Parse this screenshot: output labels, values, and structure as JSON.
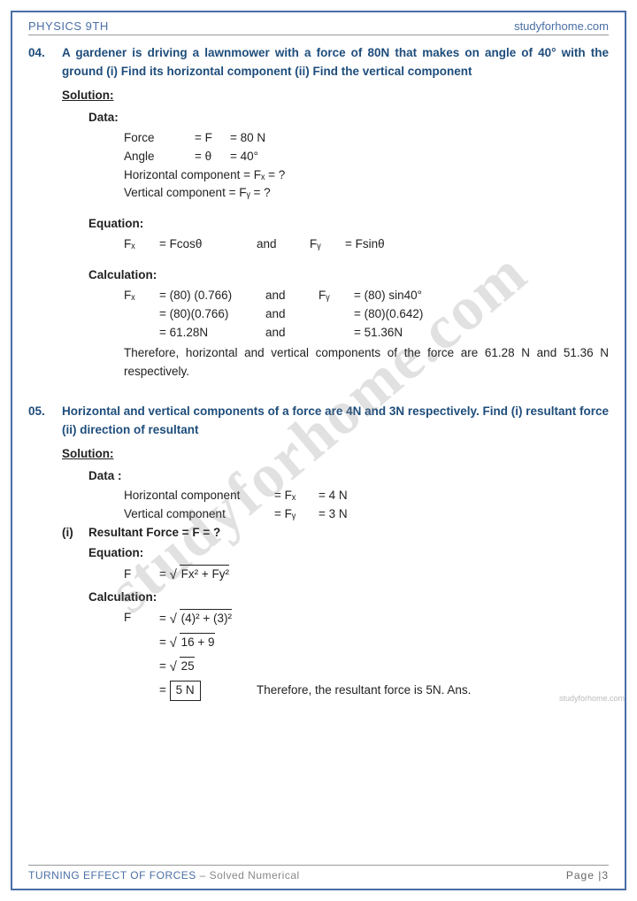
{
  "header": {
    "left": "PHYSICS 9TH",
    "right": "studyforhome.com"
  },
  "footer": {
    "leftMain": "TURNING EFFECT OF FORCES",
    "leftSub": " – Solved Numerical",
    "right": "Page |3"
  },
  "watermark": "studyforhome.com",
  "smallWatermark": "studyforhome.com",
  "q4": {
    "num": "04.",
    "text": "A gardener is driving a lawnmower with a force of 80N that makes on angle of 40° with the ground   (i)  Find its horizontal component    (ii)  Find the vertical component",
    "solution": "Solution:",
    "dataLabel": "Data:",
    "data": {
      "r1c1": "Force",
      "r1c2": "= F",
      "r1c3": "= 80 N",
      "r2c1": "Angle",
      "r2c2": "= θ",
      "r2c3": "= 40°",
      "r3": "Horizontal component = Fₓ = ?",
      "r4": "Vertical component = Fᵧ = ?"
    },
    "eqLabel": "Equation:",
    "eq": {
      "e1": "Fₓ",
      "e2": "= Fcosθ",
      "e3": "and",
      "e4": "Fᵧ",
      "e5": "= Fsinθ"
    },
    "calcLabel": "Calculation:",
    "calc": {
      "r1": {
        "c1": "Fₓ",
        "c2": "= (80) (0.766)",
        "c3": "and",
        "c4": "Fᵧ",
        "c5": "= (80) sin40°"
      },
      "r2": {
        "c1": "",
        "c2": "= (80)(0.766)",
        "c3": "and",
        "c4": "",
        "c5": "= (80)(0.642)"
      },
      "r3": {
        "c1": "",
        "c2": "= 61.28N",
        "c3": "and",
        "c4": "",
        "c5": "= 51.36N"
      }
    },
    "conclusion": "Therefore, horizontal and vertical components of the force are 61.28 N and 51.36 N respectively."
  },
  "q5": {
    "num": "05.",
    "text": "Horizontal and vertical components of a force are 4N and 3N respectively. Find (i)   resultant force       (ii)   direction of resultant",
    "solution": "Solution:",
    "dataLabel": "Data :",
    "data": {
      "r1d1": "Horizontal component",
      "r1d2": "= Fₓ",
      "r1d3": "= 4 N",
      "r2d1": "Vertical component",
      "r2d2": "= Fᵧ",
      "r2d3": "= 3 N"
    },
    "part1": "(i)",
    "partTitle": "Resultant Force    = F     = ?",
    "eqLabel": "Equation:",
    "eq": {
      "f": "F",
      "rhs": "Fx² + Fy²"
    },
    "calcLabel": "Calculation:",
    "calc": {
      "r1f": "F",
      "r1rhs": "(4)² + (3)²",
      "r2rhs": "16 + 9",
      "r3rhs": "25",
      "r4box": "5 N",
      "r4text": "Therefore, the resultant force is 5N.   Ans."
    }
  }
}
